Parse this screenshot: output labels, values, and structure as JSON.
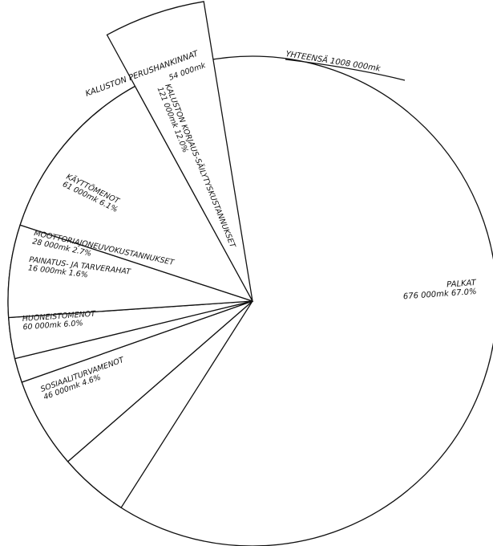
{
  "chart_data": {
    "type": "pie",
    "title": "",
    "total_label": "YHTEENSÄ 1008 000mk",
    "slices": [
      {
        "name": "PALKAT",
        "value_text": "676 000mk 67.0%",
        "value": 676000,
        "percent": 67.0
      },
      {
        "name": "KALUSTON KORJAUS-SÄILYTYSKUSTANNUKSET",
        "value_text": "121 000mk 12.0%",
        "value": 121000,
        "percent": 12.0
      },
      {
        "name": "KÄYTTÖMENOT",
        "value_text": "61 000mk 6.1%",
        "value": 61000,
        "percent": 6.1
      },
      {
        "name": "MOOTTORIAJONEUVOKUSTANNUKSET",
        "value_text": "28 000mk 2.7%",
        "value": 28000,
        "percent": 2.7
      },
      {
        "name": "PAINATUS- JA TARVERAHAT",
        "value_text": "16 000mk 1.6%",
        "value": 16000,
        "percent": 1.6
      },
      {
        "name": "HUONEISTOMENOT",
        "value_text": "60 000mk 6.0%",
        "value": 60000,
        "percent": 6.0
      },
      {
        "name": "SOSIAALITURVAMENOT",
        "value_text": "46 000mk 4.6%",
        "value": 46000,
        "percent": 4.6
      }
    ],
    "exploded_slice": {
      "name": "KALUSTON PERUSHANKINNAT",
      "value_text": "54 000mk",
      "value": 54000,
      "percent": 5.4
    }
  }
}
